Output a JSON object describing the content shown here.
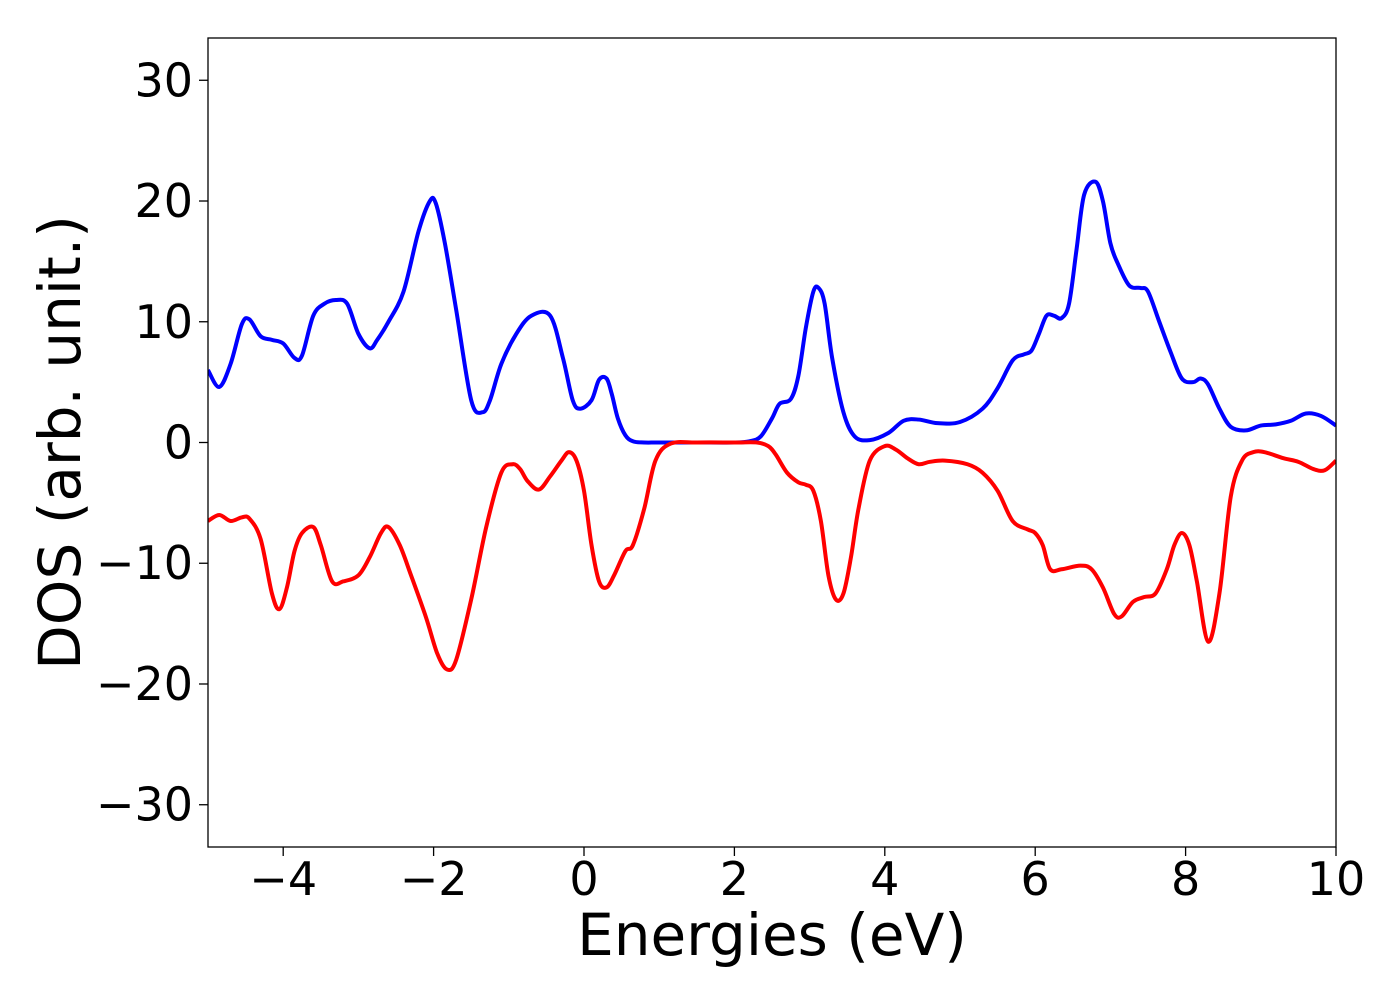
{
  "chart_data": {
    "type": "line",
    "title": "",
    "xlabel": "Energies (eV)",
    "ylabel": "DOS (arb. unit.)",
    "xlim": [
      -5,
      10
    ],
    "ylim": [
      -33.5,
      33.5
    ],
    "xticks": [
      -4,
      -2,
      0,
      2,
      4,
      6,
      8,
      10
    ],
    "yticks": [
      -30,
      -20,
      -10,
      0,
      10,
      20,
      30
    ],
    "xtick_labels": [
      "−4",
      "−2",
      "0",
      "2",
      "4",
      "6",
      "8",
      "10"
    ],
    "ytick_labels": [
      "−30",
      "−20",
      "−10",
      "0",
      "10",
      "20",
      "30"
    ],
    "grid": false,
    "legend": "none",
    "series": [
      {
        "color": "#0000ff",
        "x": [
          -5.0,
          -4.85,
          -4.7,
          -4.55,
          -4.45,
          -4.3,
          -4.15,
          -4.0,
          -3.85,
          -3.75,
          -3.6,
          -3.45,
          -3.3,
          -3.15,
          -3.0,
          -2.85,
          -2.75,
          -2.6,
          -2.4,
          -2.2,
          -2.05,
          -1.97,
          -1.85,
          -1.7,
          -1.5,
          -1.35,
          -1.25,
          -1.1,
          -0.9,
          -0.7,
          -0.45,
          -0.28,
          -0.15,
          -0.05,
          0.1,
          0.2,
          0.3,
          0.37,
          0.45,
          0.55,
          0.65,
          0.8,
          1.0,
          1.5,
          2.0,
          2.2,
          2.35,
          2.5,
          2.6,
          2.75,
          2.85,
          2.95,
          3.05,
          3.12,
          3.2,
          3.3,
          3.45,
          3.6,
          3.8,
          4.05,
          4.25,
          4.45,
          4.7,
          5.0,
          5.3,
          5.5,
          5.7,
          5.85,
          5.95,
          6.05,
          6.15,
          6.25,
          6.35,
          6.45,
          6.55,
          6.65,
          6.8,
          6.9,
          7.0,
          7.1,
          7.25,
          7.4,
          7.5,
          7.65,
          7.8,
          7.95,
          8.1,
          8.2,
          8.3,
          8.45,
          8.6,
          8.8,
          9.0,
          9.2,
          9.4,
          9.6,
          9.8,
          10.0
        ],
        "values": [
          6.0,
          4.6,
          6.5,
          9.8,
          10.2,
          8.8,
          8.5,
          8.2,
          7.0,
          7.2,
          10.5,
          11.5,
          11.8,
          11.5,
          9.0,
          7.8,
          8.5,
          10.0,
          12.5,
          17.5,
          20.0,
          19.8,
          16.5,
          11.0,
          3.5,
          2.5,
          3.5,
          6.5,
          9.0,
          10.5,
          10.5,
          7.0,
          3.5,
          2.8,
          3.5,
          5.2,
          5.3,
          4.0,
          2.0,
          0.6,
          0.1,
          0.0,
          0.0,
          0.0,
          0.0,
          0.1,
          0.5,
          2.0,
          3.2,
          3.6,
          5.5,
          9.5,
          12.5,
          12.8,
          11.5,
          7.0,
          2.5,
          0.5,
          0.2,
          0.8,
          1.8,
          1.9,
          1.6,
          1.7,
          2.8,
          4.5,
          6.8,
          7.3,
          7.6,
          9.0,
          10.5,
          10.5,
          10.3,
          11.5,
          16.0,
          20.5,
          21.6,
          20.0,
          16.5,
          14.8,
          13.0,
          12.8,
          12.5,
          10.0,
          7.5,
          5.3,
          5.0,
          5.3,
          4.8,
          2.8,
          1.3,
          1.0,
          1.4,
          1.5,
          1.8,
          2.4,
          2.2,
          1.4
        ]
      },
      {
        "color": "#ff0000",
        "x": [
          -5.0,
          -4.85,
          -4.7,
          -4.55,
          -4.45,
          -4.3,
          -4.15,
          -4.05,
          -3.95,
          -3.85,
          -3.75,
          -3.6,
          -3.5,
          -3.35,
          -3.2,
          -3.0,
          -2.85,
          -2.7,
          -2.6,
          -2.45,
          -2.3,
          -2.1,
          -1.95,
          -1.82,
          -1.7,
          -1.5,
          -1.3,
          -1.1,
          -0.95,
          -0.85,
          -0.75,
          -0.6,
          -0.45,
          -0.3,
          -0.2,
          -0.1,
          0.0,
          0.1,
          0.2,
          0.3,
          0.4,
          0.55,
          0.65,
          0.8,
          0.95,
          1.15,
          1.5,
          2.0,
          2.3,
          2.45,
          2.55,
          2.7,
          2.85,
          2.95,
          3.05,
          3.15,
          3.25,
          3.35,
          3.45,
          3.55,
          3.65,
          3.8,
          4.0,
          4.15,
          4.3,
          4.45,
          4.6,
          4.8,
          5.1,
          5.3,
          5.5,
          5.7,
          5.9,
          6.0,
          6.1,
          6.2,
          6.35,
          6.6,
          6.75,
          6.9,
          7.05,
          7.15,
          7.3,
          7.45,
          7.6,
          7.75,
          7.85,
          7.95,
          8.05,
          8.15,
          8.3,
          8.45,
          8.6,
          8.75,
          8.9,
          9.05,
          9.3,
          9.5,
          9.7,
          9.85,
          10.0
        ],
        "values": [
          -6.5,
          -6.0,
          -6.5,
          -6.2,
          -6.3,
          -8.0,
          -12.5,
          -13.8,
          -12.0,
          -9.0,
          -7.5,
          -7.0,
          -8.5,
          -11.5,
          -11.5,
          -11.0,
          -9.5,
          -7.5,
          -7.0,
          -8.5,
          -11.0,
          -14.5,
          -17.5,
          -18.8,
          -18.0,
          -13.0,
          -7.0,
          -2.5,
          -1.8,
          -2.2,
          -3.2,
          -3.9,
          -2.8,
          -1.5,
          -0.8,
          -1.5,
          -4.0,
          -8.5,
          -11.5,
          -12.0,
          -11.0,
          -9.0,
          -8.5,
          -5.5,
          -1.5,
          -0.1,
          0.0,
          0.0,
          0.0,
          -0.3,
          -1.0,
          -2.5,
          -3.3,
          -3.5,
          -4.0,
          -6.5,
          -11.0,
          -13.0,
          -12.5,
          -9.5,
          -5.5,
          -1.5,
          -0.3,
          -0.6,
          -1.3,
          -1.8,
          -1.6,
          -1.5,
          -1.8,
          -2.5,
          -4.0,
          -6.5,
          -7.2,
          -7.5,
          -8.5,
          -10.5,
          -10.5,
          -10.2,
          -10.5,
          -12.0,
          -14.2,
          -14.4,
          -13.2,
          -12.8,
          -12.5,
          -10.5,
          -8.5,
          -7.5,
          -8.5,
          -11.5,
          -16.5,
          -12.5,
          -4.5,
          -1.5,
          -0.8,
          -0.8,
          -1.3,
          -1.6,
          -2.2,
          -2.3,
          -1.5
        ]
      }
    ]
  }
}
